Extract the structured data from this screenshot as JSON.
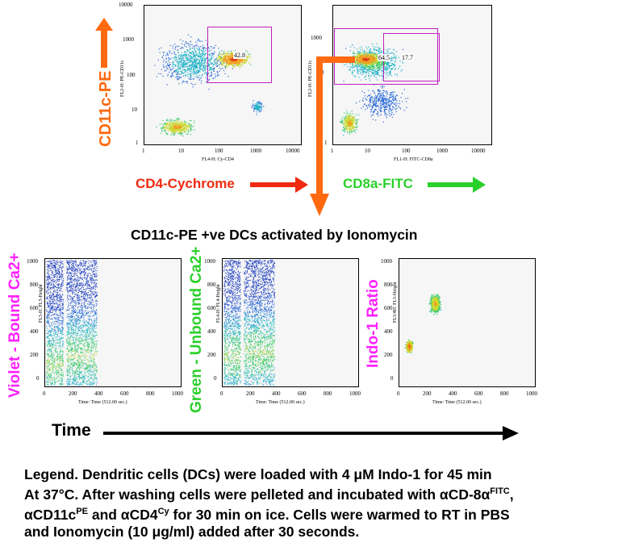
{
  "colors": {
    "orange": "#ff6a10",
    "red": "#f02a10",
    "green": "#2ad02a",
    "magenta": "#ff20ff",
    "gate": "#c020c0",
    "black": "#000000"
  },
  "top_plots": {
    "left": {
      "y_ticks": [
        "10000",
        "1000",
        "100",
        "10",
        "1"
      ],
      "x_ticks": [
        "1",
        "10",
        "100",
        "1000",
        "10000"
      ],
      "x_axis_label": "FL4-H: Cy-CD4",
      "y_axis_label": "FL2-H: PE-CD11c",
      "gate_value": "42.8",
      "side_label": "CD11c-PE",
      "bottom_label": "CD4-Cychrome"
    },
    "right": {
      "y_ticks": [
        "1000",
        "0",
        "1"
      ],
      "x_ticks": [
        "1",
        "10",
        "100",
        "1000",
        "10000"
      ],
      "x_axis_label": "FL1-H: FITC-CD8a",
      "y_axis_label": "FL2-H: PE-CD11c",
      "gate_values": [
        "64.5",
        "17.7"
      ],
      "bottom_label": "CD8a-FITC"
    }
  },
  "middle_title": "CD11c-PE +ve DCs activated by Ionomycin",
  "time_plots": [
    {
      "side_label": "Violet - Bound Ca2+",
      "y_axis_label": "FL5-H: FL5-Height",
      "y_ticks": [
        "1000",
        "800",
        "600",
        "400",
        "200",
        "0"
      ],
      "x_ticks": [
        "0",
        "200",
        "400",
        "600",
        "800",
        "1000"
      ],
      "x_axis_label": "Time: Time (512.00 sec.)"
    },
    {
      "side_label": "Green - Unbound Ca2+",
      "y_axis_label": "FL4-H: FL4-Height",
      "y_ticks": [
        "1000",
        "800",
        "600",
        "400",
        "200",
        "0"
      ],
      "x_ticks": [
        "0",
        "200",
        "400",
        "600",
        "800",
        "1000"
      ],
      "x_axis_label": "Time: Time (512.00 sec.)"
    },
    {
      "side_label": "Indo-1 Ratio",
      "y_axis_label": "FL5/4H: FL5-Height",
      "y_ticks": [
        "1000",
        "800",
        "600",
        "400",
        "200",
        "0"
      ],
      "x_ticks": [
        "0",
        "200",
        "400",
        "600",
        "800",
        "1000"
      ],
      "x_axis_label": "Time: Time (512.00 sec.)"
    }
  ],
  "time_label": "Time",
  "legend": {
    "line1": "Legend. Dendritic cells (DCs) were loaded with 4 μM Indo-1 for 45 min",
    "line2_a": "At 37°C. After washing cells were pelleted and incubated  with αCD-8α",
    "line2_sup": "FITC",
    "line2_b": ",",
    "line3_a": "αCD11c",
    "line3_sup1": "PE",
    "line3_b": " and αCD4",
    "line3_sup2": "Cy",
    "line3_c": " for 30 min on ice. Cells were warmed to RT in PBS",
    "line4": "and Ionomycin (10 μg/ml) added after 30 seconds."
  }
}
